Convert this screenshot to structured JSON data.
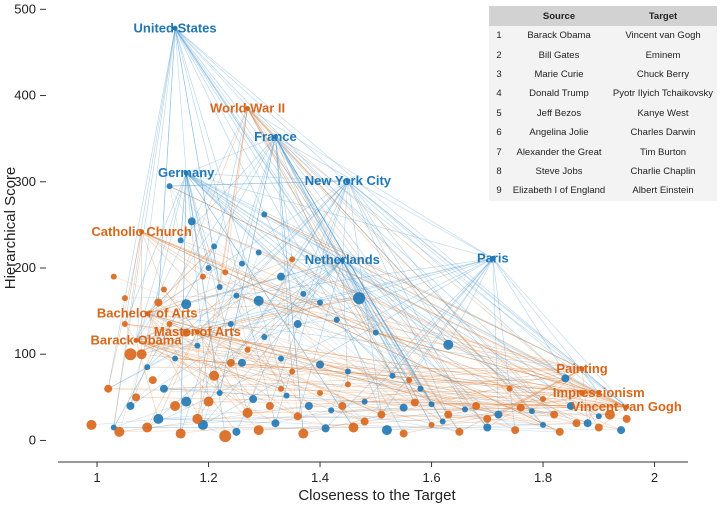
{
  "chart_data": {
    "type": "scatter",
    "title": "",
    "xlabel": "Closeness to the Target",
    "ylabel": "Hierarchical Score",
    "xlim": [
      0.93,
      2.06
    ],
    "ylim": [
      -25,
      505
    ],
    "xticks": [
      1,
      1.2,
      1.4,
      1.6,
      1.8,
      2
    ],
    "yticks": [
      0,
      100,
      200,
      300,
      400,
      500
    ],
    "colors": {
      "blue": "#1f77b4",
      "orange": "#d8661a",
      "blue_edge": "#4f9bd1",
      "orange_edge": "#e08a4a"
    },
    "hubs": [
      {
        "label": "United States",
        "x": 1.14,
        "y": 478,
        "series": "blue"
      },
      {
        "label": "World War II",
        "x": 1.27,
        "y": 385,
        "series": "orange"
      },
      {
        "label": "France",
        "x": 1.32,
        "y": 352,
        "series": "blue"
      },
      {
        "label": "Germany",
        "x": 1.16,
        "y": 310,
        "series": "blue"
      },
      {
        "label": "New York City",
        "x": 1.45,
        "y": 301,
        "series": "blue"
      },
      {
        "label": "Catholic Church",
        "x": 1.08,
        "y": 242,
        "series": "orange"
      },
      {
        "label": "Netherlands",
        "x": 1.44,
        "y": 209,
        "series": "blue"
      },
      {
        "label": "Paris",
        "x": 1.71,
        "y": 211,
        "series": "blue"
      },
      {
        "label": "Bachelor of Arts",
        "x": 1.09,
        "y": 147,
        "series": "orange"
      },
      {
        "label": "Barack Obama",
        "x": 1.07,
        "y": 116,
        "series": "orange"
      },
      {
        "label": "Master of Arts",
        "x": 1.18,
        "y": 126,
        "series": "orange"
      },
      {
        "label": "Painting",
        "x": 1.87,
        "y": 83,
        "series": "orange"
      },
      {
        "label": "Impressionism",
        "x": 1.9,
        "y": 55,
        "series": "orange"
      },
      {
        "label": "Vincent van Gogh",
        "x": 1.95,
        "y": 39,
        "series": "orange"
      }
    ],
    "points": [
      {
        "series": "blue",
        "x": 1.13,
        "y": 295,
        "size": 3
      },
      {
        "series": "blue",
        "x": 1.17,
        "y": 254,
        "size": 4
      },
      {
        "series": "blue",
        "x": 1.15,
        "y": 232,
        "size": 3
      },
      {
        "series": "blue",
        "x": 1.21,
        "y": 225,
        "size": 3
      },
      {
        "series": "blue",
        "x": 1.2,
        "y": 200,
        "size": 3
      },
      {
        "series": "blue",
        "x": 1.26,
        "y": 205,
        "size": 3
      },
      {
        "series": "blue",
        "x": 1.3,
        "y": 262,
        "size": 3
      },
      {
        "series": "blue",
        "x": 1.29,
        "y": 218,
        "size": 3
      },
      {
        "series": "blue",
        "x": 1.16,
        "y": 158,
        "size": 5
      },
      {
        "series": "blue",
        "x": 1.22,
        "y": 178,
        "size": 3
      },
      {
        "series": "blue",
        "x": 1.25,
        "y": 168,
        "size": 3
      },
      {
        "series": "blue",
        "x": 1.29,
        "y": 162,
        "size": 5
      },
      {
        "series": "blue",
        "x": 1.33,
        "y": 190,
        "size": 4
      },
      {
        "series": "blue",
        "x": 1.37,
        "y": 170,
        "size": 3
      },
      {
        "series": "blue",
        "x": 1.4,
        "y": 160,
        "size": 3
      },
      {
        "series": "blue",
        "x": 1.47,
        "y": 165,
        "size": 6
      },
      {
        "series": "blue",
        "x": 1.36,
        "y": 135,
        "size": 4
      },
      {
        "series": "blue",
        "x": 1.43,
        "y": 140,
        "size": 3
      },
      {
        "series": "blue",
        "x": 1.5,
        "y": 125,
        "size": 3
      },
      {
        "series": "blue",
        "x": 1.63,
        "y": 111,
        "size": 5
      },
      {
        "series": "blue",
        "x": 1.24,
        "y": 135,
        "size": 3
      },
      {
        "series": "blue",
        "x": 1.3,
        "y": 120,
        "size": 3
      },
      {
        "series": "blue",
        "x": 1.18,
        "y": 110,
        "size": 3
      },
      {
        "series": "blue",
        "x": 1.26,
        "y": 90,
        "size": 4
      },
      {
        "series": "blue",
        "x": 1.33,
        "y": 95,
        "size": 3
      },
      {
        "series": "blue",
        "x": 1.4,
        "y": 88,
        "size": 4
      },
      {
        "series": "blue",
        "x": 1.45,
        "y": 80,
        "size": 3
      },
      {
        "series": "blue",
        "x": 1.53,
        "y": 75,
        "size": 3
      },
      {
        "series": "blue",
        "x": 1.84,
        "y": 72,
        "size": 4
      },
      {
        "series": "blue",
        "x": 1.12,
        "y": 60,
        "size": 4
      },
      {
        "series": "blue",
        "x": 1.16,
        "y": 45,
        "size": 5
      },
      {
        "series": "blue",
        "x": 1.22,
        "y": 55,
        "size": 3
      },
      {
        "series": "blue",
        "x": 1.28,
        "y": 48,
        "size": 4
      },
      {
        "series": "blue",
        "x": 1.34,
        "y": 52,
        "size": 3
      },
      {
        "series": "blue",
        "x": 1.38,
        "y": 40,
        "size": 4
      },
      {
        "series": "blue",
        "x": 1.42,
        "y": 35,
        "size": 3
      },
      {
        "series": "blue",
        "x": 1.48,
        "y": 45,
        "size": 3
      },
      {
        "series": "blue",
        "x": 1.55,
        "y": 38,
        "size": 4
      },
      {
        "series": "blue",
        "x": 1.6,
        "y": 42,
        "size": 3
      },
      {
        "series": "blue",
        "x": 1.66,
        "y": 36,
        "size": 3
      },
      {
        "series": "blue",
        "x": 1.72,
        "y": 30,
        "size": 4
      },
      {
        "series": "blue",
        "x": 1.78,
        "y": 34,
        "size": 3
      },
      {
        "series": "blue",
        "x": 1.85,
        "y": 40,
        "size": 4
      },
      {
        "series": "blue",
        "x": 1.9,
        "y": 28,
        "size": 3
      },
      {
        "series": "blue",
        "x": 1.94,
        "y": 12,
        "size": 4
      },
      {
        "series": "blue",
        "x": 1.11,
        "y": 25,
        "size": 5
      },
      {
        "series": "blue",
        "x": 1.19,
        "y": 18,
        "size": 5
      },
      {
        "series": "blue",
        "x": 1.25,
        "y": 10,
        "size": 4
      },
      {
        "series": "blue",
        "x": 1.32,
        "y": 20,
        "size": 4
      },
      {
        "series": "blue",
        "x": 1.41,
        "y": 14,
        "size": 4
      },
      {
        "series": "blue",
        "x": 1.52,
        "y": 12,
        "size": 5
      },
      {
        "series": "blue",
        "x": 1.62,
        "y": 22,
        "size": 3
      },
      {
        "series": "blue",
        "x": 1.7,
        "y": 15,
        "size": 4
      },
      {
        "series": "blue",
        "x": 1.8,
        "y": 18,
        "size": 3
      },
      {
        "series": "blue",
        "x": 1.88,
        "y": 20,
        "size": 4
      },
      {
        "series": "blue",
        "x": 1.06,
        "y": 40,
        "size": 4
      },
      {
        "series": "blue",
        "x": 1.09,
        "y": 85,
        "size": 3
      },
      {
        "series": "blue",
        "x": 1.14,
        "y": 95,
        "size": 3
      },
      {
        "series": "blue",
        "x": 1.03,
        "y": 15,
        "size": 3
      },
      {
        "series": "blue",
        "x": 1.58,
        "y": 60,
        "size": 3
      },
      {
        "series": "orange",
        "x": 1.03,
        "y": 190,
        "size": 3
      },
      {
        "series": "orange",
        "x": 1.05,
        "y": 165,
        "size": 3
      },
      {
        "series": "orange",
        "x": 1.12,
        "y": 175,
        "size": 3
      },
      {
        "series": "orange",
        "x": 1.19,
        "y": 190,
        "size": 3
      },
      {
        "series": "orange",
        "x": 1.23,
        "y": 195,
        "size": 3
      },
      {
        "series": "orange",
        "x": 1.35,
        "y": 210,
        "size": 3
      },
      {
        "series": "orange",
        "x": 1.11,
        "y": 160,
        "size": 4
      },
      {
        "series": "orange",
        "x": 1.16,
        "y": 125,
        "size": 4
      },
      {
        "series": "orange",
        "x": 1.13,
        "y": 135,
        "size": 3
      },
      {
        "series": "orange",
        "x": 1.05,
        "y": 135,
        "size": 3
      },
      {
        "series": "orange",
        "x": 1.08,
        "y": 100,
        "size": 5
      },
      {
        "series": "orange",
        "x": 1.06,
        "y": 100,
        "size": 6
      },
      {
        "series": "orange",
        "x": 1.21,
        "y": 75,
        "size": 5
      },
      {
        "series": "orange",
        "x": 1.24,
        "y": 90,
        "size": 4
      },
      {
        "series": "orange",
        "x": 1.27,
        "y": 105,
        "size": 3
      },
      {
        "series": "orange",
        "x": 1.35,
        "y": 80,
        "size": 3
      },
      {
        "series": "orange",
        "x": 1.45,
        "y": 65,
        "size": 3
      },
      {
        "series": "orange",
        "x": 1.56,
        "y": 70,
        "size": 3
      },
      {
        "series": "orange",
        "x": 1.74,
        "y": 60,
        "size": 3
      },
      {
        "series": "orange",
        "x": 1.02,
        "y": 60,
        "size": 4
      },
      {
        "series": "orange",
        "x": 1.07,
        "y": 50,
        "size": 4
      },
      {
        "series": "orange",
        "x": 1.14,
        "y": 40,
        "size": 5
      },
      {
        "series": "orange",
        "x": 1.2,
        "y": 45,
        "size": 5
      },
      {
        "series": "orange",
        "x": 1.27,
        "y": 32,
        "size": 5
      },
      {
        "series": "orange",
        "x": 1.31,
        "y": 40,
        "size": 4
      },
      {
        "series": "orange",
        "x": 1.36,
        "y": 28,
        "size": 4
      },
      {
        "series": "orange",
        "x": 1.44,
        "y": 40,
        "size": 4
      },
      {
        "series": "orange",
        "x": 1.51,
        "y": 30,
        "size": 4
      },
      {
        "series": "orange",
        "x": 1.57,
        "y": 44,
        "size": 4
      },
      {
        "series": "orange",
        "x": 1.63,
        "y": 30,
        "size": 4
      },
      {
        "series": "orange",
        "x": 1.68,
        "y": 40,
        "size": 4
      },
      {
        "series": "orange",
        "x": 1.76,
        "y": 38,
        "size": 4
      },
      {
        "series": "orange",
        "x": 1.82,
        "y": 30,
        "size": 4
      },
      {
        "series": "orange",
        "x": 1.86,
        "y": 20,
        "size": 4
      },
      {
        "series": "orange",
        "x": 1.92,
        "y": 30,
        "size": 5
      },
      {
        "series": "orange",
        "x": 0.99,
        "y": 18,
        "size": 5
      },
      {
        "series": "orange",
        "x": 1.04,
        "y": 10,
        "size": 5
      },
      {
        "series": "orange",
        "x": 1.09,
        "y": 15,
        "size": 5
      },
      {
        "series": "orange",
        "x": 1.15,
        "y": 8,
        "size": 5
      },
      {
        "series": "orange",
        "x": 1.23,
        "y": 5,
        "size": 6
      },
      {
        "series": "orange",
        "x": 1.29,
        "y": 12,
        "size": 5
      },
      {
        "series": "orange",
        "x": 1.37,
        "y": 8,
        "size": 5
      },
      {
        "series": "orange",
        "x": 1.46,
        "y": 15,
        "size": 5
      },
      {
        "series": "orange",
        "x": 1.55,
        "y": 8,
        "size": 4
      },
      {
        "series": "orange",
        "x": 1.65,
        "y": 10,
        "size": 4
      },
      {
        "series": "orange",
        "x": 1.75,
        "y": 12,
        "size": 4
      },
      {
        "series": "orange",
        "x": 1.83,
        "y": 10,
        "size": 4
      },
      {
        "series": "orange",
        "x": 1.9,
        "y": 15,
        "size": 4
      },
      {
        "series": "orange",
        "x": 1.95,
        "y": 25,
        "size": 4
      },
      {
        "series": "orange",
        "x": 1.18,
        "y": 25,
        "size": 5
      },
      {
        "series": "orange",
        "x": 1.1,
        "y": 70,
        "size": 4
      },
      {
        "series": "orange",
        "x": 1.33,
        "y": 60,
        "size": 3
      },
      {
        "series": "orange",
        "x": 1.4,
        "y": 55,
        "size": 3
      },
      {
        "series": "orange",
        "x": 1.48,
        "y": 22,
        "size": 4
      },
      {
        "series": "orange",
        "x": 1.6,
        "y": 18,
        "size": 3
      },
      {
        "series": "orange",
        "x": 1.7,
        "y": 25,
        "size": 4
      },
      {
        "series": "orange",
        "x": 1.8,
        "y": 48,
        "size": 3
      },
      {
        "series": "orange",
        "x": 1.87,
        "y": 55,
        "size": 3
      }
    ]
  },
  "legend_table": {
    "headers": [
      "",
      "Source",
      "Target"
    ],
    "rows": [
      {
        "idx": "1",
        "source": "Barack Obama",
        "target": "Vincent van Gogh"
      },
      {
        "idx": "2",
        "source": "Bill Gates",
        "target": "Eminem"
      },
      {
        "idx": "3",
        "source": "Marie Curie",
        "target": "Chuck Berry"
      },
      {
        "idx": "4",
        "source": "Donald Trump",
        "target": "Pyotr Ilyich Tchaikovsky"
      },
      {
        "idx": "5",
        "source": "Jeff Bezos",
        "target": "Kanye West"
      },
      {
        "idx": "6",
        "source": "Angelina Jolie",
        "target": "Charles Darwin"
      },
      {
        "idx": "7",
        "source": "Alexander the Great",
        "target": "Tim Burton"
      },
      {
        "idx": "8",
        "source": "Steve Jobs",
        "target": "Charlie Chaplin"
      },
      {
        "idx": "9",
        "source": "Elizabeth I of England",
        "target": "Albert Einstein"
      }
    ]
  }
}
